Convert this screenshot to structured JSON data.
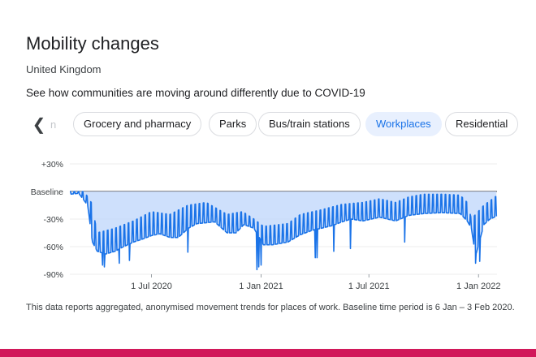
{
  "header": {
    "title": "Mobility changes",
    "subtitle": "United Kingdom",
    "description": "See how communities are moving around differently due to COVID-19"
  },
  "tabs": {
    "back_icon": "chevron-left-icon",
    "partial_label": "n",
    "items": [
      {
        "label": "Grocery and pharmacy",
        "active": false
      },
      {
        "label": "Parks",
        "active": false
      },
      {
        "label": "Bus/train stations",
        "active": false
      },
      {
        "label": "Workplaces",
        "active": true
      },
      {
        "label": "Residential",
        "active": false
      }
    ]
  },
  "footnote": "This data reports aggregated, anonymised movement trends for places of work. Baseline time period is 6 Jan – 3 Feb 2020.",
  "colors": {
    "accent": "#1a73e8",
    "line": "#1a73e8",
    "fill": "#c6dafc",
    "bottom_bar": "#d1185a"
  },
  "chart_data": {
    "type": "area",
    "ylim": [
      -90,
      30
    ],
    "yticks": [
      {
        "value": 30,
        "label": "+30%"
      },
      {
        "value": 0,
        "label": "Baseline"
      },
      {
        "value": -30,
        "label": "-30%"
      },
      {
        "value": -60,
        "label": "-60%"
      },
      {
        "value": -90,
        "label": "-90%"
      }
    ],
    "xrange": [
      "2020-02-15",
      "2022-02-01"
    ],
    "xticks": [
      {
        "date": "2020-07-01",
        "label": "1 Jul 2020"
      },
      {
        "date": "2021-01-01",
        "label": "1 Jan 2021"
      },
      {
        "date": "2021-07-01",
        "label": "1 Jul 2021"
      },
      {
        "date": "2022-01-01",
        "label": "1 Jan 2022"
      }
    ],
    "weekday_points": [
      [
        "2020-02-15",
        -3
      ],
      [
        "2020-03-01",
        -2
      ],
      [
        "2020-03-16",
        -15
      ],
      [
        "2020-03-24",
        -55
      ],
      [
        "2020-04-01",
        -65
      ],
      [
        "2020-04-15",
        -68
      ],
      [
        "2020-05-01",
        -65
      ],
      [
        "2020-05-15",
        -60
      ],
      [
        "2020-06-01",
        -55
      ],
      [
        "2020-06-15",
        -52
      ],
      [
        "2020-07-01",
        -48
      ],
      [
        "2020-07-15",
        -46
      ],
      [
        "2020-08-01",
        -50
      ],
      [
        "2020-08-15",
        -50
      ],
      [
        "2020-09-01",
        -40
      ],
      [
        "2020-09-15",
        -35
      ],
      [
        "2020-10-01",
        -34
      ],
      [
        "2020-10-15",
        -33
      ],
      [
        "2020-11-05",
        -45
      ],
      [
        "2020-11-20",
        -45
      ],
      [
        "2020-12-03",
        -36
      ],
      [
        "2020-12-20",
        -40
      ],
      [
        "2021-01-05",
        -58
      ],
      [
        "2021-01-20",
        -58
      ],
      [
        "2021-02-15",
        -55
      ],
      [
        "2021-03-08",
        -47
      ],
      [
        "2021-03-29",
        -42
      ],
      [
        "2021-04-12",
        -40
      ],
      [
        "2021-05-01",
        -37
      ],
      [
        "2021-05-17",
        -33
      ],
      [
        "2021-06-01",
        -30
      ],
      [
        "2021-06-21",
        -32
      ],
      [
        "2021-07-19",
        -28
      ],
      [
        "2021-08-15",
        -32
      ],
      [
        "2021-09-06",
        -26
      ],
      [
        "2021-10-01",
        -24
      ],
      [
        "2021-11-01",
        -23
      ],
      [
        "2021-12-01",
        -24
      ],
      [
        "2021-12-13",
        -32
      ],
      [
        "2021-12-20",
        -40
      ],
      [
        "2021-12-27",
        -70
      ],
      [
        "2022-01-10",
        -36
      ],
      [
        "2022-01-20",
        -30
      ],
      [
        "2022-01-31",
        -27
      ]
    ],
    "weekend_points": [
      [
        "2020-02-15",
        0
      ],
      [
        "2020-03-10",
        0
      ],
      [
        "2020-03-22",
        -12
      ],
      [
        "2020-04-01",
        -45
      ],
      [
        "2020-05-01",
        -40
      ],
      [
        "2020-06-01",
        -32
      ],
      [
        "2020-07-01",
        -22
      ],
      [
        "2020-08-01",
        -25
      ],
      [
        "2020-08-31",
        -15
      ],
      [
        "2020-10-01",
        -12
      ],
      [
        "2020-11-05",
        -25
      ],
      [
        "2020-12-01",
        -22
      ],
      [
        "2020-12-20",
        -30
      ],
      [
        "2021-01-05",
        -38
      ],
      [
        "2021-02-15",
        -35
      ],
      [
        "2021-03-08",
        -25
      ],
      [
        "2021-04-12",
        -20
      ],
      [
        "2021-05-17",
        -14
      ],
      [
        "2021-06-21",
        -12
      ],
      [
        "2021-07-19",
        -8
      ],
      [
        "2021-08-15",
        -12
      ],
      [
        "2021-09-06",
        -6
      ],
      [
        "2021-10-01",
        -3
      ],
      [
        "2021-11-01",
        -3
      ],
      [
        "2021-12-01",
        -4
      ],
      [
        "2021-12-13",
        -12
      ],
      [
        "2021-12-20",
        -30
      ],
      [
        "2022-01-10",
        -15
      ],
      [
        "2022-01-31",
        -5
      ]
    ],
    "holiday_dips": [
      {
        "date": "2020-04-10",
        "value": -80
      },
      {
        "date": "2020-04-13",
        "value": -82
      },
      {
        "date": "2020-05-08",
        "value": -78
      },
      {
        "date": "2020-05-25",
        "value": -75
      },
      {
        "date": "2020-08-31",
        "value": -66
      },
      {
        "date": "2020-12-25",
        "value": -85
      },
      {
        "date": "2020-12-28",
        "value": -82
      },
      {
        "date": "2021-01-01",
        "value": -80
      },
      {
        "date": "2021-04-02",
        "value": -72
      },
      {
        "date": "2021-04-05",
        "value": -72
      },
      {
        "date": "2021-05-03",
        "value": -65
      },
      {
        "date": "2021-05-31",
        "value": -62
      },
      {
        "date": "2021-08-30",
        "value": -55
      },
      {
        "date": "2021-12-27",
        "value": -78
      },
      {
        "date": "2022-01-03",
        "value": -76
      }
    ]
  }
}
